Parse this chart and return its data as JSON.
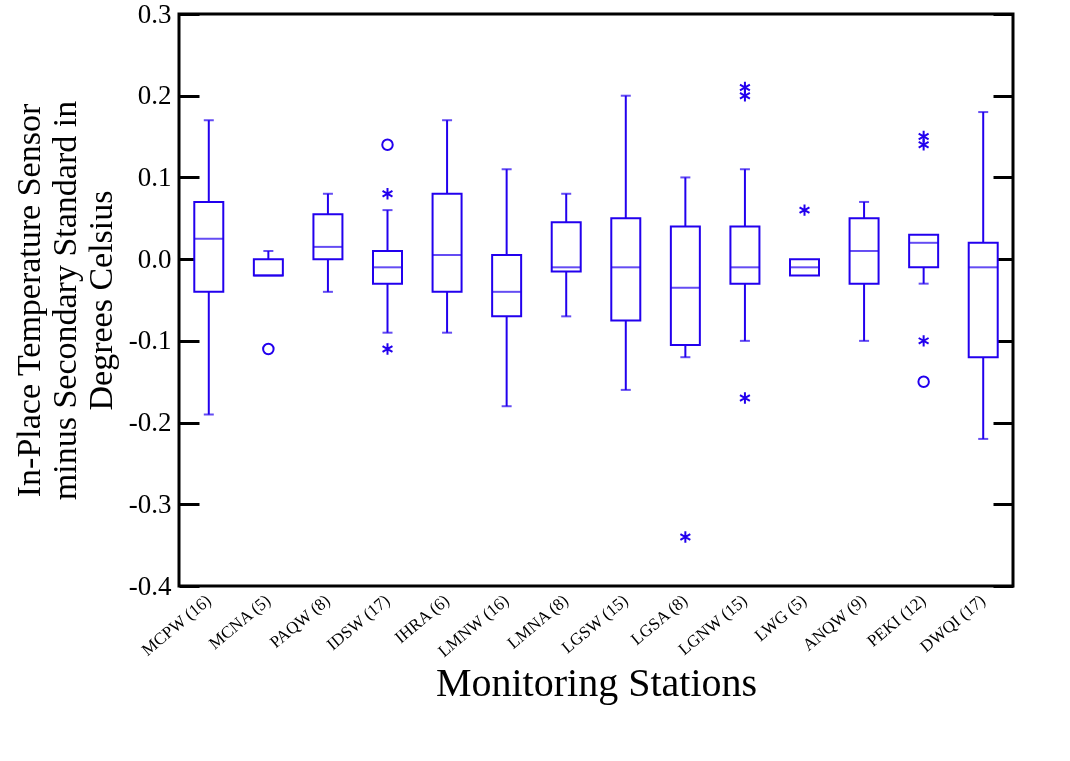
{
  "chart_data": {
    "type": "box",
    "xlabel": "Monitoring Stations",
    "ylabel": "In-Place Temperature Sensor\nminus Secondary Standard in\nDegrees Celsius",
    "categories": [
      "MCPW (16)",
      "MCNA (5)",
      "PAQW (8)",
      "IDSW (17)",
      "IHRA (6)",
      "LMNW (16)",
      "LMNA (8)",
      "LGSW (15)",
      "LGSA (8)",
      "LGNW (15)",
      "LWG (5)",
      "ANQW (9)",
      "PEKI (12)",
      "DWQI (17)"
    ],
    "ylim": [
      -0.4,
      0.3
    ],
    "yticks": [
      {
        "value": -0.4,
        "label": "-0.4"
      },
      {
        "value": -0.3,
        "label": "-0.3"
      },
      {
        "value": -0.2,
        "label": "-0.2"
      },
      {
        "value": -0.1,
        "label": "-0.1"
      },
      {
        "value": 0,
        "label": "0.0"
      },
      {
        "value": 0.1,
        "label": "0.1"
      },
      {
        "value": 0.2,
        "label": "0.2"
      },
      {
        "value": 0.3,
        "label": "0.3"
      }
    ],
    "grid": false,
    "series": [
      {
        "color": "#2200ee",
        "marker": "circle",
        "boxes": [
          {
            "low": -0.19,
            "q1": -0.04,
            "median": 0.025,
            "q3": 0.07,
            "high": 0.17
          },
          {
            "low": -0.02,
            "q1": -0.02,
            "median": -0.02,
            "q3": 0.0,
            "high": 0.01,
            "outliers": [
              -0.11
            ]
          },
          {
            "low": -0.04,
            "q1": 0.0,
            "median": 0.015,
            "q3": 0.055,
            "high": 0.08
          },
          {
            "low": -0.09,
            "q1": -0.03,
            "median": -0.01,
            "q3": 0.01,
            "high": 0.06,
            "outliers": [
              0.14
            ]
          },
          {
            "low": -0.09,
            "q1": -0.04,
            "median": 0.005,
            "q3": 0.08,
            "high": 0.17
          },
          {
            "low": -0.18,
            "q1": -0.07,
            "median": -0.04,
            "q3": 0.005,
            "high": 0.11
          },
          {
            "low": -0.07,
            "q1": -0.015,
            "median": -0.01,
            "q3": 0.045,
            "high": 0.08
          },
          {
            "low": -0.16,
            "q1": -0.075,
            "median": -0.01,
            "q3": 0.05,
            "high": 0.2
          },
          {
            "low": -0.12,
            "q1": -0.105,
            "median": -0.035,
            "q3": 0.04,
            "high": 0.1
          },
          {
            "low": -0.1,
            "q1": -0.03,
            "median": -0.01,
            "q3": 0.04,
            "high": 0.11
          },
          {
            "low": -0.02,
            "q1": -0.02,
            "median": -0.01,
            "q3": 0.0,
            "high": 0.0
          },
          {
            "low": -0.1,
            "q1": -0.03,
            "median": 0.01,
            "q3": 0.05,
            "high": 0.07
          },
          {
            "low": -0.03,
            "q1": -0.01,
            "median": 0.02,
            "q3": 0.03,
            "high": 0.03,
            "outliers": [
              -0.15
            ]
          },
          {
            "low": -0.22,
            "q1": -0.12,
            "median": -0.01,
            "q3": 0.02,
            "high": 0.18
          }
        ]
      },
      {
        "type": "scatter",
        "marker": "cross",
        "color": "#2200ee",
        "x": [
          "IDSW (17)",
          "IDSW (17)",
          "LGSA (8)",
          "LGNW (15)",
          "LGNW (15)",
          "LGNW (15)",
          "LWG (5)",
          "PEKI (12)",
          "PEKI (12)",
          "PEKI (12)"
        ],
        "values": [
          0.08,
          -0.11,
          -0.34,
          0.21,
          0.2,
          -0.17,
          0.06,
          0.15,
          0.14,
          -0.1
        ]
      }
    ]
  }
}
